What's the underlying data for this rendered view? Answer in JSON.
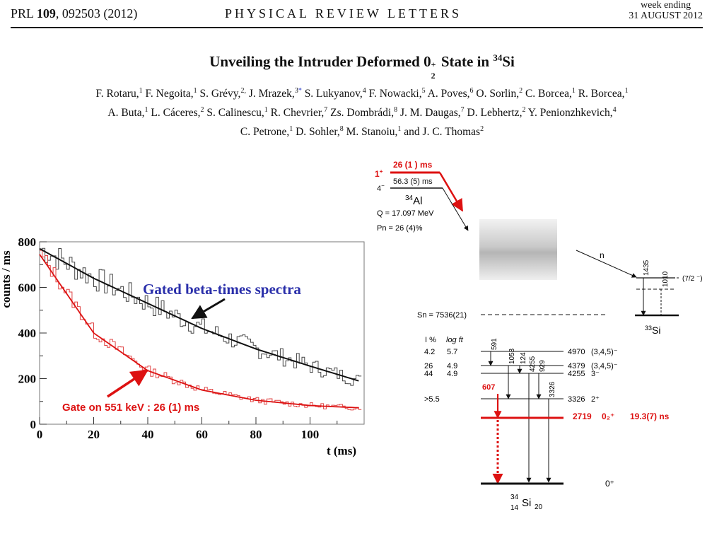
{
  "header": {
    "journal": "PRL",
    "volume": "109",
    "citation": "092503 (2012)",
    "center": "PHYSICAL REVIEW LETTERS",
    "week_ending": "week ending",
    "date": "31 AUGUST 2012"
  },
  "title": {
    "prefix": "Unveiling the Intruder Deformed 0",
    "sub": "2",
    "sup": "+",
    "mid": " State in ",
    "mass": "34",
    "element": "Si"
  },
  "authors": {
    "line1": [
      {
        "name": "F. Rotaru,",
        "aff": "1"
      },
      {
        "name": " F. Negoita,",
        "aff": "1"
      },
      {
        "name": " S. Grévy,",
        "aff": "2,"
      },
      {
        "name": " J. Mrazek,",
        "aff": "3",
        "ast": "*"
      },
      {
        "name": " S. Lukyanov,",
        "aff": "4"
      },
      {
        "name": " F. Nowacki,",
        "aff": "5"
      },
      {
        "name": " A. Poves,",
        "aff": "6"
      },
      {
        "name": " O. Sorlin,",
        "aff": "2"
      },
      {
        "name": " C. Borcea,",
        "aff": "1"
      },
      {
        "name": " R. Borcea,",
        "aff": "1"
      }
    ],
    "line2": [
      {
        "name": "A. Buta,",
        "aff": "1"
      },
      {
        "name": " L. Cáceres,",
        "aff": "2"
      },
      {
        "name": " S. Calinescu,",
        "aff": "1"
      },
      {
        "name": " R. Chevrier,",
        "aff": "7"
      },
      {
        "name": " Zs. Dombrádi,",
        "aff": "8"
      },
      {
        "name": " J. M. Daugas,",
        "aff": "7"
      },
      {
        "name": " D. Lebhertz,",
        "aff": "2"
      },
      {
        "name": " Y. Penionzhkevich,",
        "aff": "4"
      }
    ],
    "line3": [
      {
        "name": "C. Petrone,",
        "aff": "1"
      },
      {
        "name": " D. Sohler,",
        "aff": "8"
      },
      {
        "name": " M. Stanoiu,",
        "aff": "1"
      },
      {
        "name": " and J. C. Thomas",
        "aff": "2"
      }
    ]
  },
  "chart_data": {
    "type": "line",
    "xlabel": "t (ms)",
    "ylabel": "counts / ms",
    "xlim": [
      0,
      120
    ],
    "ylim": [
      0,
      800
    ],
    "xticks": [
      0,
      20,
      40,
      60,
      80,
      100
    ],
    "yticks": [
      0,
      200,
      400,
      600,
      800
    ],
    "series": [
      {
        "name": "Gated beta-times spectra",
        "color": "#111111",
        "values_fit": [
          [
            0,
            770
          ],
          [
            20,
            640
          ],
          [
            40,
            530
          ],
          [
            60,
            420
          ],
          [
            80,
            330
          ],
          [
            100,
            255
          ],
          [
            118,
            190
          ]
        ]
      },
      {
        "name": "Gate on 551 keV : 26 (1) ms",
        "color": "#dd1111",
        "values_fit": [
          [
            0,
            745
          ],
          [
            20,
            400
          ],
          [
            40,
            235
          ],
          [
            60,
            150
          ],
          [
            80,
            105
          ],
          [
            100,
            82
          ],
          [
            118,
            72
          ]
        ]
      }
    ],
    "annotations": {
      "black_label": "Gated beta-times spectra",
      "red_label": "Gate on 551 keV : 26 (1) ms"
    }
  },
  "level_scheme": {
    "parent_1plus_label": "1",
    "parent_1plus_sup": "+",
    "parent_1plus_halflife": "26 (1 ) ms",
    "parent_4minus_label": "4",
    "parent_4minus_sup": "−",
    "parent_4minus_halflife": "56.3 (5) ms",
    "parent_mass": "34",
    "parent_elem": "Al",
    "q_value": "Q   = 17.097 MeV",
    "pn": "Pn = 26 (4)%",
    "neutron": "n",
    "si33_levels": [
      "1435",
      "1010"
    ],
    "si33_spin": "(7/2 ⁻)",
    "si33_mass": "33",
    "si33_elem": "Si",
    "sn": "Sn = 7536(21)",
    "col_i": "I  %",
    "col_logft": "log ft",
    "rows": [
      {
        "i": "4.2",
        "logft": "5.7",
        "energy": "4970",
        "spin": "(3,4,5)⁻"
      },
      {
        "i": "26",
        "logft": "4.9",
        "energy": "4379",
        "spin": "(3,4,5)⁻"
      },
      {
        "i": "44",
        "logft": "4.9",
        "energy": "4255",
        "spin": "3⁻"
      },
      {
        "i": ">5.5",
        "logft": "",
        "energy": "3326",
        "spin": "2⁺"
      }
    ],
    "gammas": [
      "591",
      "1053",
      "124",
      "4255",
      "929",
      "3326"
    ],
    "red_gamma": "607",
    "red_level_energy": "2719",
    "red_level_spin": "0₂⁺",
    "red_level_halflife": "19.3(7) ns",
    "ground_spin": "0⁺",
    "daughter_mass": "34",
    "daughter_z": "14",
    "daughter_elem": "Si",
    "daughter_n": "20"
  }
}
